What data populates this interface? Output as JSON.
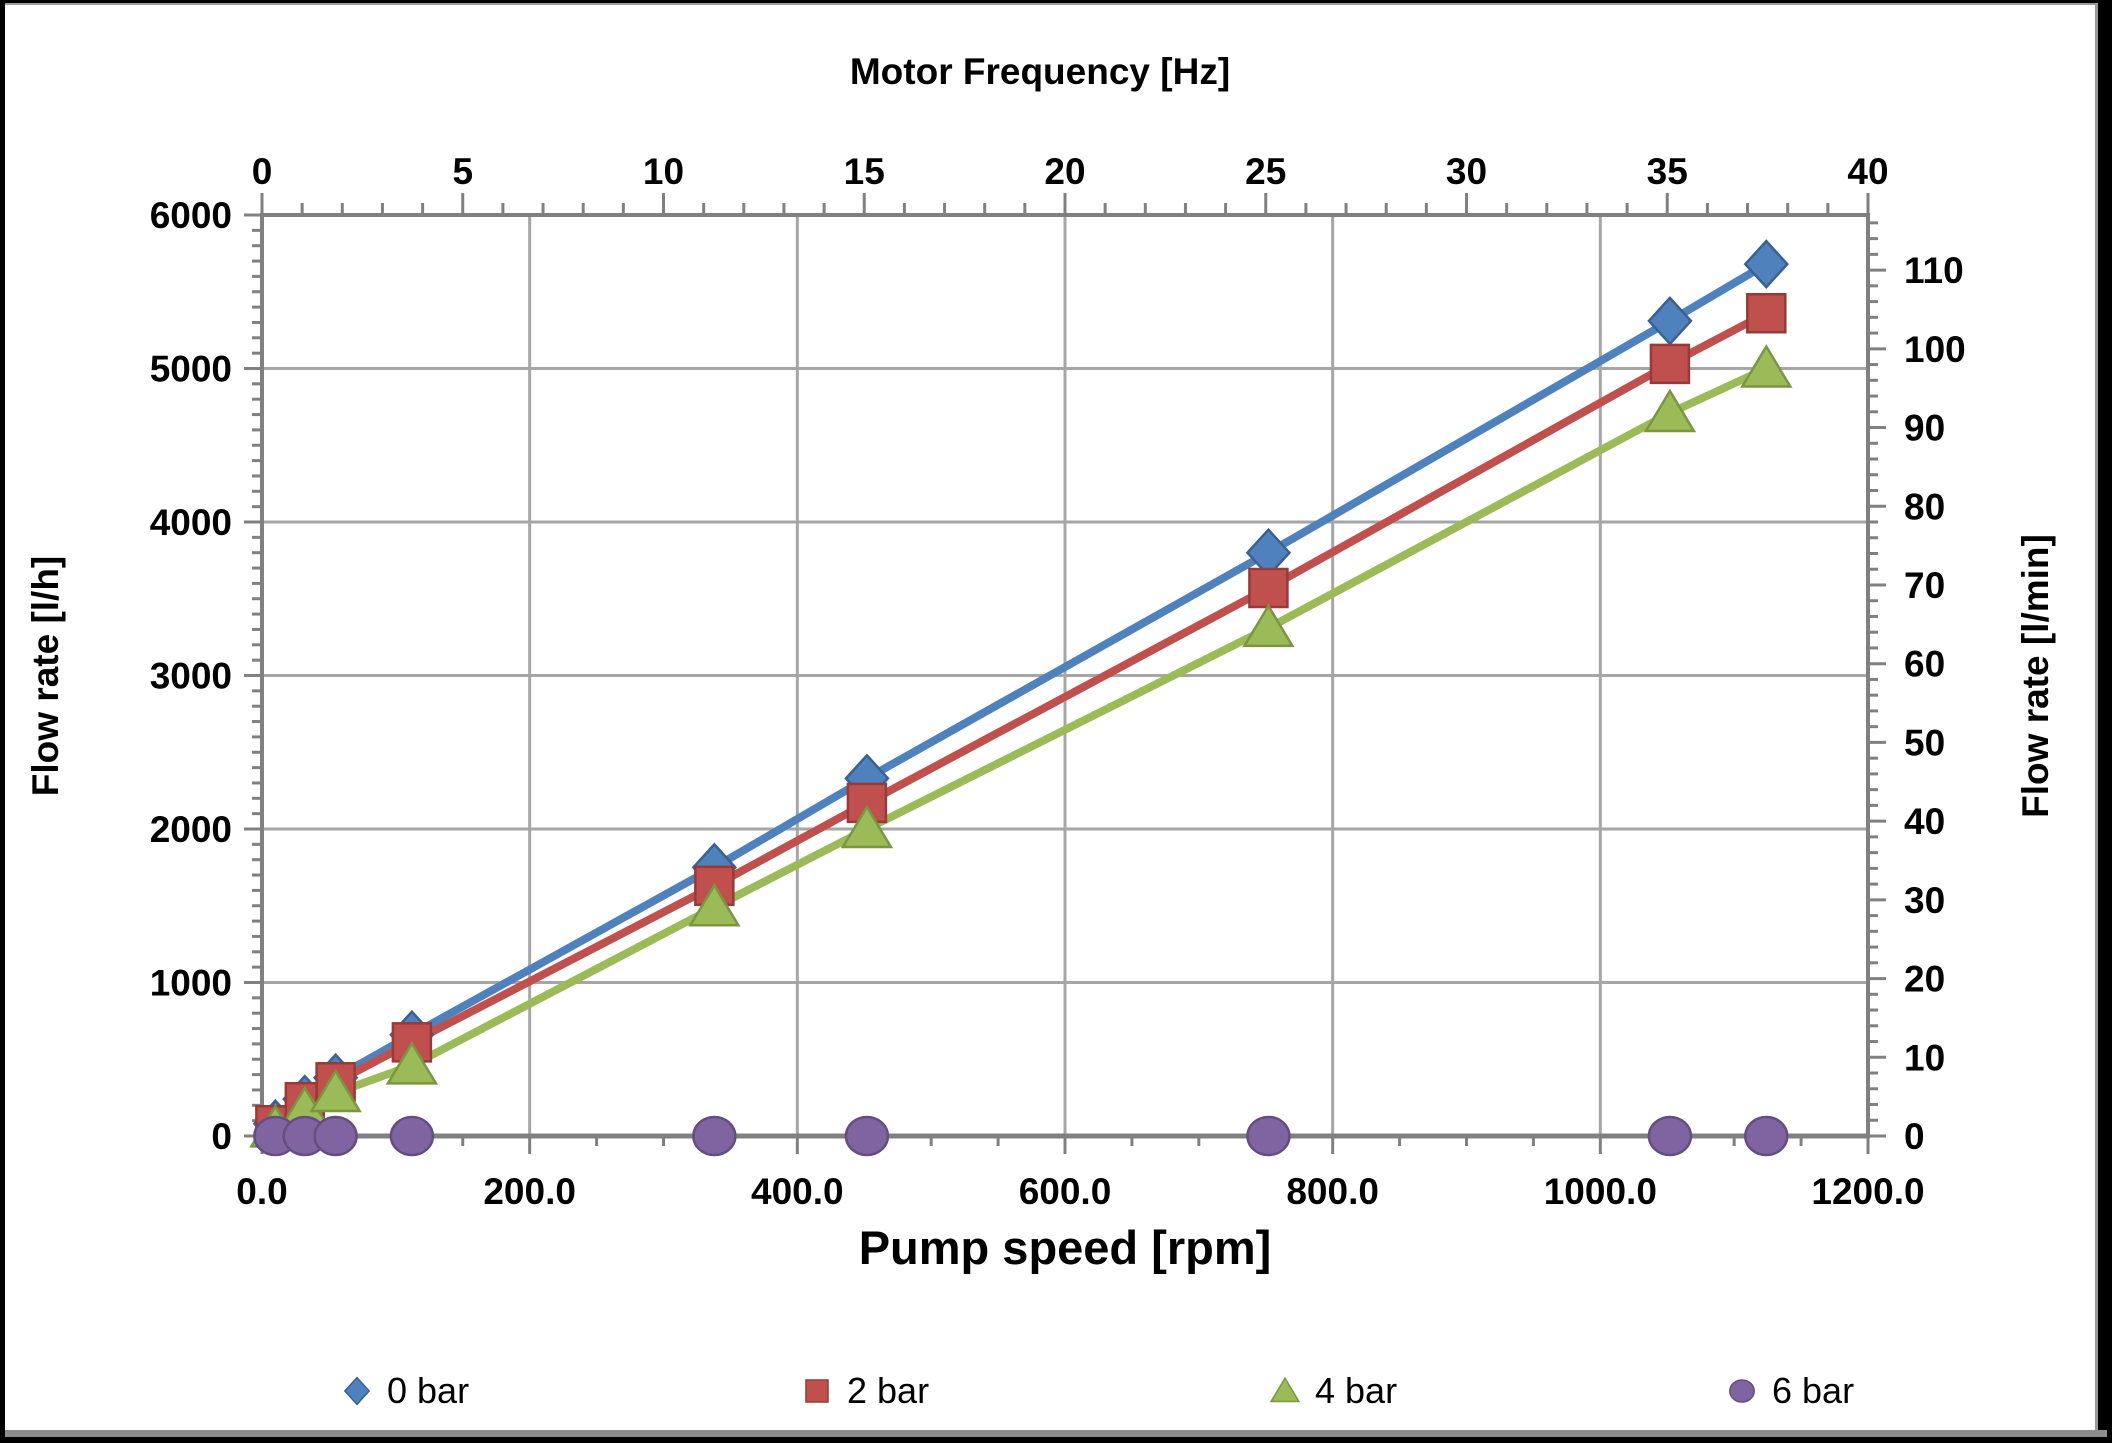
{
  "chart_data": {
    "type": "line",
    "titles": {
      "top_axis": "Motor Frequency [Hz]",
      "bottom_axis": "Pump speed [rpm]",
      "left_axis": "Flow rate [l/h]",
      "right_axis": "Flow rate [l/min]"
    },
    "axes": {
      "top": {
        "min": 0,
        "max": 40,
        "minor_step": 1,
        "tick_values": [
          0,
          5,
          10,
          15,
          20,
          25,
          30,
          35,
          40
        ],
        "tick_labels": [
          "0",
          "5",
          "10",
          "15",
          "20",
          "25",
          "30",
          "35",
          "40"
        ]
      },
      "bottom": {
        "min": 0,
        "max": 1200,
        "minor_step": 50,
        "tick_values": [
          0,
          200,
          400,
          600,
          800,
          1000,
          1200
        ],
        "tick_labels": [
          "0.0",
          "200.0",
          "400.0",
          "600.0",
          "800.0",
          "1000.0",
          "1200.0"
        ]
      },
      "left": {
        "min": 0,
        "max": 6000,
        "minor_step": 100,
        "tick_values": [
          0,
          1000,
          2000,
          3000,
          4000,
          5000,
          6000
        ],
        "tick_labels": [
          "0",
          "1000",
          "2000",
          "3000",
          "4000",
          "5000",
          "6000"
        ]
      },
      "right": {
        "min": 0,
        "max": 117,
        "minor_step": 2,
        "tick_values": [
          0,
          10,
          20,
          30,
          40,
          50,
          60,
          70,
          80,
          90,
          100,
          110
        ],
        "tick_labels": [
          "0",
          "10",
          "20",
          "30",
          "40",
          "50",
          "60",
          "70",
          "80",
          "90",
          "100",
          "110"
        ]
      }
    },
    "grid": {
      "show_vertical": true,
      "show_horizontal": true
    },
    "legend_position": "bottom",
    "series": [
      {
        "name": "0 bar",
        "color": "#4F81BD",
        "border_color": "#3B6191",
        "marker": "diamond",
        "line": true,
        "x_rpm": [
          10,
          32,
          55,
          112,
          338,
          452,
          752,
          1052,
          1124
        ],
        "y_l_per_h": [
          80,
          240,
          380,
          660,
          1750,
          2330,
          3800,
          5310,
          5680
        ]
      },
      {
        "name": "2 bar",
        "color": "#C0504D",
        "border_color": "#963B39",
        "marker": "square",
        "line": true,
        "x_rpm": [
          10,
          32,
          55,
          112,
          338,
          452,
          752,
          1052,
          1124
        ],
        "y_l_per_h": [
          70,
          220,
          350,
          610,
          1630,
          2170,
          3570,
          5030,
          5360
        ]
      },
      {
        "name": "4 bar",
        "color": "#9BBB59",
        "border_color": "#7A9640",
        "marker": "triangle",
        "line": true,
        "x_rpm": [
          10,
          32,
          55,
          112,
          338,
          452,
          752,
          1052,
          1124
        ],
        "y_l_per_h": [
          50,
          170,
          280,
          460,
          1490,
          2000,
          3310,
          4710,
          5000
        ]
      },
      {
        "name": "6 bar",
        "color": "#8064A2",
        "border_color": "#644E81",
        "marker": "circle",
        "line": false,
        "x_rpm": [
          10,
          32,
          55,
          112,
          338,
          452,
          752,
          1052,
          1124
        ],
        "y_l_per_h": [
          0,
          0,
          0,
          0,
          0,
          0,
          0,
          0,
          0
        ]
      }
    ],
    "colors": {
      "grid": "#A6A6A6",
      "axis": "#808080",
      "text": "#000000",
      "background": "#FFFFFF",
      "frame": "#000000",
      "bottom_strip": "#8C8C8C"
    }
  }
}
